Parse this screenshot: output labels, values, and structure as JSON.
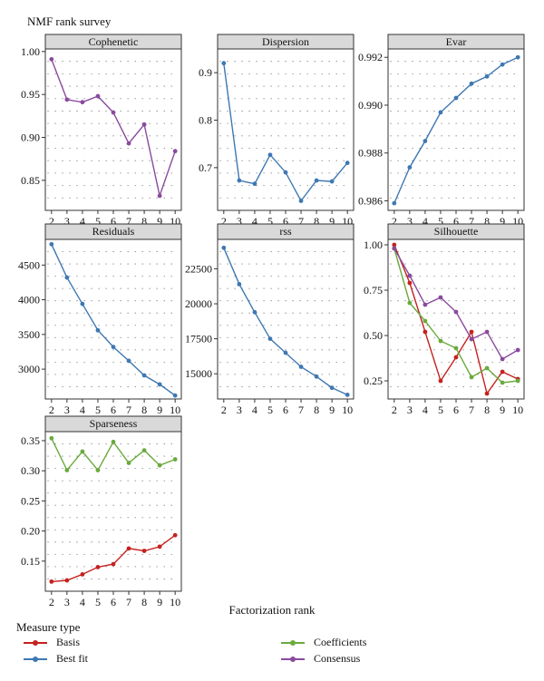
{
  "title": "NMF rank survey",
  "x_axis_title": "Factorization rank",
  "legend": {
    "title": "Measure type",
    "items": [
      {
        "key": "basis",
        "label": "Basis",
        "color": "#c4221f"
      },
      {
        "key": "bestfit",
        "label": "Best fit",
        "color": "#3e78b2"
      },
      {
        "key": "coefficients",
        "label": "Coefficients",
        "color": "#6aaa3e"
      },
      {
        "key": "consensus",
        "label": "Consensus",
        "color": "#8a4a9e"
      }
    ]
  },
  "chart_data": [
    {
      "type": "line",
      "title": "Cophenetic",
      "x": [
        2,
        3,
        4,
        5,
        6,
        7,
        8,
        9,
        10
      ],
      "ylim": [
        0.815,
        1.003
      ],
      "yticks": [
        0.85,
        0.9,
        0.95,
        1.0
      ],
      "ytick_labels": [
        "0.85",
        "0.90",
        "0.95",
        "1.00"
      ],
      "series": [
        {
          "name": "Consensus",
          "values": [
            0.991,
            0.944,
            0.941,
            0.948,
            0.929,
            0.893,
            0.915,
            0.832,
            0.884
          ]
        }
      ]
    },
    {
      "type": "line",
      "title": "Dispersion",
      "x": [
        2,
        3,
        4,
        5,
        6,
        7,
        8,
        9,
        10
      ],
      "ylim": [
        0.61,
        0.95
      ],
      "yticks": [
        0.7,
        0.8,
        0.9
      ],
      "ytick_labels": [
        "0.7",
        "0.8",
        "0.9"
      ],
      "series": [
        {
          "name": "Best fit",
          "values": [
            0.92,
            0.673,
            0.666,
            0.727,
            0.69,
            0.63,
            0.673,
            0.671,
            0.71
          ]
        }
      ]
    },
    {
      "type": "line",
      "title": "Evar",
      "x": [
        2,
        3,
        4,
        5,
        6,
        7,
        8,
        9,
        10
      ],
      "ylim": [
        0.9856,
        0.99235
      ],
      "yticks": [
        0.986,
        0.988,
        0.99,
        0.992
      ],
      "ytick_labels": [
        "0.986",
        "0.988",
        "0.990",
        "0.992"
      ],
      "series": [
        {
          "name": "Best fit",
          "values": [
            0.9859,
            0.9874,
            0.9885,
            0.9897,
            0.9903,
            0.9909,
            0.9912,
            0.9917,
            0.992
          ]
        }
      ]
    },
    {
      "type": "line",
      "title": "Residuals",
      "x": [
        2,
        3,
        4,
        5,
        6,
        7,
        8,
        9,
        10
      ],
      "ylim": [
        2570,
        4870
      ],
      "yticks": [
        3000,
        3500,
        4000,
        4500
      ],
      "ytick_labels": [
        "3000",
        "3500",
        "4000",
        "4500"
      ],
      "series": [
        {
          "name": "Best fit",
          "values": [
            4800,
            4320,
            3940,
            3560,
            3320,
            3120,
            2910,
            2780,
            2620
          ]
        }
      ]
    },
    {
      "type": "line",
      "title": "rss",
      "x": [
        2,
        3,
        4,
        5,
        6,
        7,
        8,
        9,
        10
      ],
      "ylim": [
        13200,
        24600
      ],
      "yticks": [
        15000,
        17500,
        20000,
        22500
      ],
      "ytick_labels": [
        "15000",
        "17500",
        "20000",
        "22500"
      ],
      "series": [
        {
          "name": "Best fit",
          "values": [
            24000,
            21400,
            19400,
            17500,
            16500,
            15500,
            14800,
            14000,
            13500
          ]
        }
      ]
    },
    {
      "type": "line",
      "title": "Silhouette",
      "x": [
        2,
        3,
        4,
        5,
        6,
        7,
        8,
        9,
        10
      ],
      "ylim": [
        0.15,
        1.03
      ],
      "yticks": [
        0.25,
        0.5,
        0.75,
        1.0
      ],
      "ytick_labels": [
        "0.25",
        "0.50",
        "0.75",
        "1.00"
      ],
      "series": [
        {
          "name": "Basis",
          "values": [
            1.0,
            0.79,
            0.52,
            0.25,
            0.38,
            0.52,
            0.18,
            0.3,
            0.26
          ]
        },
        {
          "name": "Coefficients",
          "values": [
            0.98,
            0.68,
            0.58,
            0.47,
            0.43,
            0.27,
            0.32,
            0.24,
            0.25
          ]
        },
        {
          "name": "Consensus",
          "values": [
            0.98,
            0.83,
            0.67,
            0.71,
            0.63,
            0.48,
            0.52,
            0.37,
            0.42
          ]
        }
      ]
    },
    {
      "type": "line",
      "title": "Sparseness",
      "x": [
        2,
        3,
        4,
        5,
        6,
        7,
        8,
        9,
        10
      ],
      "ylim": [
        0.1,
        0.365
      ],
      "yticks": [
        0.15,
        0.2,
        0.25,
        0.3,
        0.35
      ],
      "ytick_labels": [
        "0.15",
        "0.20",
        "0.25",
        "0.30",
        "0.35"
      ],
      "series": [
        {
          "name": "Basis",
          "values": [
            0.116,
            0.118,
            0.128,
            0.14,
            0.145,
            0.171,
            0.167,
            0.174,
            0.193
          ]
        },
        {
          "name": "Coefficients",
          "values": [
            0.354,
            0.301,
            0.332,
            0.301,
            0.348,
            0.313,
            0.334,
            0.309,
            0.319
          ]
        }
      ]
    }
  ]
}
